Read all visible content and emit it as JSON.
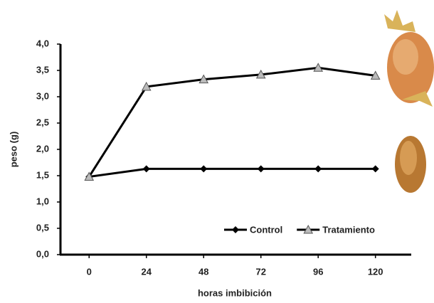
{
  "chart_data": {
    "type": "line",
    "x_label": "horas imbibición",
    "y_label": "peso (g)",
    "x": [
      0,
      24,
      48,
      72,
      96,
      120
    ],
    "series": [
      {
        "name": "Control",
        "color": "#000000",
        "marker": "diamond",
        "values": [
          1.48,
          1.63,
          1.63,
          1.63,
          1.63,
          1.63
        ]
      },
      {
        "name": "Tratamiento",
        "color": "#000000",
        "marker": "triangle",
        "values": [
          1.48,
          3.19,
          3.33,
          3.42,
          3.55,
          3.4
        ]
      }
    ],
    "xlim": [
      -12,
      135
    ],
    "ylim": [
      0,
      4
    ],
    "xticks": [
      0,
      24,
      48,
      72,
      96,
      120
    ],
    "yticks": [
      {
        "value": 0,
        "label": "0,0"
      },
      {
        "value": 0.5,
        "label": "0,5"
      },
      {
        "value": 1,
        "label": "1,0"
      },
      {
        "value": 1.5,
        "label": "1,5"
      },
      {
        "value": 2,
        "label": "2,0"
      },
      {
        "value": 2.5,
        "label": "2,5"
      },
      {
        "value": 3,
        "label": "3,0"
      },
      {
        "value": 3.5,
        "label": "3,5"
      },
      {
        "value": 4,
        "label": "4,0"
      }
    ],
    "grid": false,
    "legend": "lower right"
  }
}
